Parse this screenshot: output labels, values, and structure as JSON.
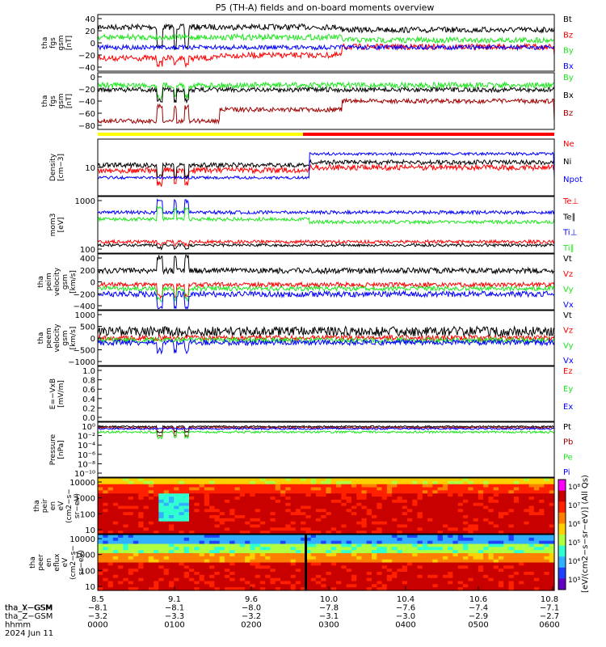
{
  "title": "P5 (TH-A) fields and on-board moments overview",
  "colors": {
    "black": "#000000",
    "red": "#ff0000",
    "green": "#1ee61e",
    "blue": "#0000ff",
    "darkred": "#a00000",
    "yellow": "#ffff00"
  },
  "chart_data": [
    {
      "type": "line",
      "ylabel_lines": [
        "tha",
        "fgs",
        "gsm",
        "[nT]"
      ],
      "yticks": [
        "40",
        "20",
        "0",
        "−20",
        "−40"
      ],
      "ylim": [
        -40,
        55
      ],
      "series": [
        {
          "name": "Bt",
          "color": "black"
        },
        {
          "name": "Bz",
          "color": "red"
        },
        {
          "name": "By",
          "color": "green"
        },
        {
          "name": "Bx",
          "color": "blue"
        }
      ]
    },
    {
      "type": "line",
      "ylabel_lines": [
        "tha",
        "fgs",
        "gsm",
        "[nT]"
      ],
      "yticks": [
        "0",
        "−20",
        "−40",
        "−60",
        "−80"
      ],
      "ylim": [
        -90,
        10
      ],
      "series": [
        {
          "name": "By",
          "color": "green"
        },
        {
          "name": "Bx",
          "color": "black"
        },
        {
          "name": "Bz",
          "color": "darkred"
        }
      ]
    },
    {
      "type": "line",
      "ylabel_lines": [
        "Density",
        "[cm−3]"
      ],
      "yticks": [
        "10"
      ],
      "scale": "log",
      "series": [
        {
          "name": "Ne",
          "color": "red"
        },
        {
          "name": "Ni",
          "color": "black"
        },
        {
          "name": "Npot",
          "color": "blue"
        }
      ]
    },
    {
      "type": "line",
      "ylabel_lines": [
        "mom3",
        "[eV]"
      ],
      "yticks": [
        "1000",
        "100"
      ],
      "scale": "log",
      "series": [
        {
          "name": "Te⊥",
          "color": "red"
        },
        {
          "name": "Te∥",
          "color": "black"
        },
        {
          "name": "Ti⊥",
          "color": "blue"
        },
        {
          "name": "Ti∥",
          "color": "green"
        }
      ]
    },
    {
      "type": "line",
      "ylabel_lines": [
        "tha",
        "peim",
        "velocity",
        "gsm",
        "[km/s]"
      ],
      "yticks": [
        "400",
        "200",
        "0",
        "−200",
        "−400"
      ],
      "ylim": [
        -400,
        450
      ],
      "series": [
        {
          "name": "Vt",
          "color": "black"
        },
        {
          "name": "Vz",
          "color": "red"
        },
        {
          "name": "Vy",
          "color": "green"
        },
        {
          "name": "Vx",
          "color": "blue"
        }
      ]
    },
    {
      "type": "line",
      "ylabel_lines": [
        "tha",
        "peem",
        "velocity",
        "gsm",
        "[km/s]"
      ],
      "yticks": [
        "1000",
        "500",
        "0",
        "−500",
        "−1000"
      ],
      "ylim": [
        -1000,
        1000
      ],
      "series": [
        {
          "name": "Vt",
          "color": "black"
        },
        {
          "name": "Vz",
          "color": "red"
        },
        {
          "name": "Vy",
          "color": "green"
        },
        {
          "name": "Vx",
          "color": "blue"
        }
      ]
    },
    {
      "type": "line",
      "ylabel_lines": [
        "E=−VxB",
        "[mV/m]"
      ],
      "yticks": [
        "1.0",
        "0.8",
        "0.6",
        "0.4",
        "0.2",
        "0.0"
      ],
      "ylim": [
        0,
        1
      ],
      "series": [
        {
          "name": "Ez",
          "color": "red"
        },
        {
          "name": "Ey",
          "color": "green"
        },
        {
          "name": "Ex",
          "color": "blue"
        }
      ]
    },
    {
      "type": "line",
      "ylabel_lines": [
        "Pressure",
        "[nPa]"
      ],
      "yticks": [
        "10⁰",
        "10⁻²",
        "10⁻⁴",
        "10⁻⁶",
        "10⁻⁸",
        "10⁻¹⁰"
      ],
      "scale": "log",
      "series": [
        {
          "name": "Pt",
          "color": "black"
        },
        {
          "name": "Pb",
          "color": "darkred"
        },
        {
          "name": "Pe",
          "color": "green"
        },
        {
          "name": "Pi",
          "color": "blue"
        }
      ]
    },
    {
      "type": "heatmap",
      "ylabel_lines": [
        "tha",
        "peir",
        "en",
        "eV",
        "(cm2−s−",
        "sr−eV)"
      ],
      "yticks": [
        "10000",
        "1000",
        "100",
        "10"
      ],
      "scale": "log"
    },
    {
      "type": "heatmap",
      "ylabel_lines": [
        "tha",
        "peer",
        "en",
        "eflux",
        "eV",
        "(cm2−s−",
        "sr−eV)"
      ],
      "yticks": [
        "10000",
        "1000",
        "100",
        "10"
      ],
      "scale": "log"
    }
  ],
  "colorbar": {
    "ticks": [
      "10⁸",
      "10⁷",
      "10⁶",
      "10⁵",
      "10⁴",
      "10³"
    ],
    "label": "[eV/(cm2−s−sr−eV)] (All Qs)"
  },
  "xaxis": {
    "ticks": [
      {
        "r": "8.5",
        "x": "−8.1",
        "y": "−3.2",
        "h": "0000"
      },
      {
        "r": "9.1",
        "x": "−8.1",
        "y": "−3.3",
        "h": "0100"
      },
      {
        "r": "9.6",
        "x": "−8.0",
        "y": "−3.2",
        "h": "0200"
      },
      {
        "r": "10.0",
        "x": "−7.8",
        "y": "−3.1",
        "h": "0300"
      },
      {
        "r": "10.4",
        "x": "−7.6",
        "y": "−3.0",
        "h": "0400"
      },
      {
        "r": "10.6",
        "x": "−7.4",
        "y": "−2.9",
        "h": "0500"
      },
      {
        "r": "10.8",
        "x": "−7.1",
        "y": "−2.7",
        "h": "0600"
      }
    ],
    "row_labels": [
      "tha_X−GSM",
      "tha_Y−GSM",
      "tha_Z−GSM",
      "hhmm",
      "2024 Jun 11"
    ]
  }
}
